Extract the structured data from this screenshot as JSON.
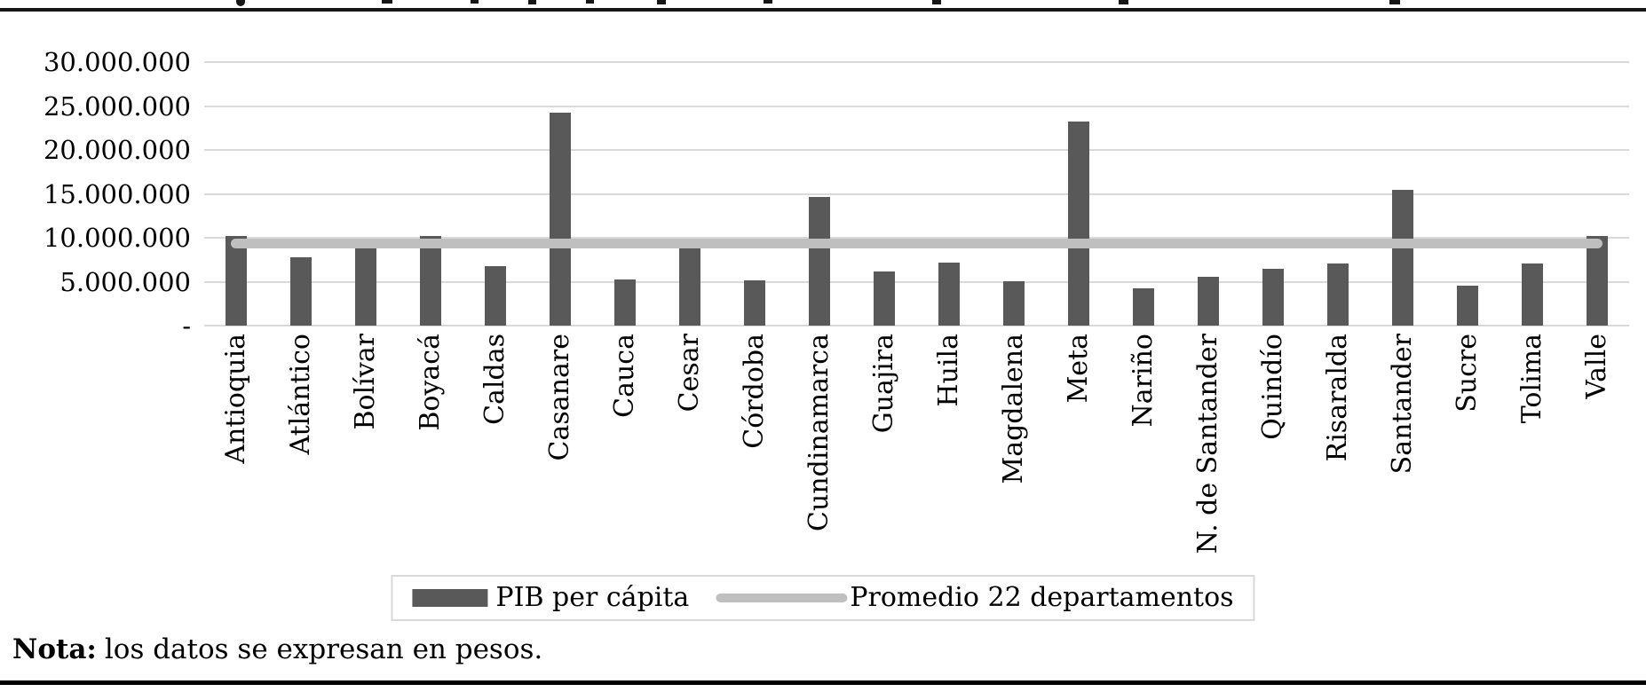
{
  "chart_data": {
    "type": "bar",
    "title": "",
    "xlabel": "",
    "ylabel": "",
    "categories": [
      "Antioquia",
      "Atlántico",
      "Bolívar",
      "Boyacá",
      "Caldas",
      "Casanare",
      "Cauca",
      "Cesar",
      "Córdoba",
      "Cundinamarca",
      "Guajira",
      "Huila",
      "Magdalena",
      "Meta",
      "Nariño",
      "N. de Santander",
      "Quindío",
      "Risaralda",
      "Santander",
      "Sucre",
      "Tolima",
      "Valle"
    ],
    "series": [
      {
        "name": "PIB per cápita",
        "type": "bar",
        "color": "#595959",
        "values": [
          10200000,
          7800000,
          8900000,
          10250000,
          6800000,
          24200000,
          5300000,
          9000000,
          5200000,
          14600000,
          6200000,
          7200000,
          5100000,
          23200000,
          4200000,
          5600000,
          6500000,
          7100000,
          15500000,
          4500000,
          7100000,
          10200000
        ]
      },
      {
        "name": "Promedio 22 departamentos",
        "type": "line",
        "color": "#BFBFBF",
        "value": 9300000
      }
    ],
    "ylim": [
      0,
      30000000
    ],
    "yticks": [
      {
        "value": 30000000,
        "label": "30.000.000"
      },
      {
        "value": 25000000,
        "label": "25.000.000"
      },
      {
        "value": 20000000,
        "label": "20.000.000"
      },
      {
        "value": 15000000,
        "label": "15.000.000"
      },
      {
        "value": 10000000,
        "label": "10.000.000"
      },
      {
        "value": 5000000,
        "label": "5.000.000"
      },
      {
        "value": 0,
        "label": "-"
      }
    ],
    "colors": {
      "grid": "#D9D9D9"
    },
    "grid": true,
    "legend_position": "bottom",
    "x_labels_rotation": -90
  },
  "note": {
    "label": "Nota:",
    "text": "los datos se expresan en pesos."
  }
}
